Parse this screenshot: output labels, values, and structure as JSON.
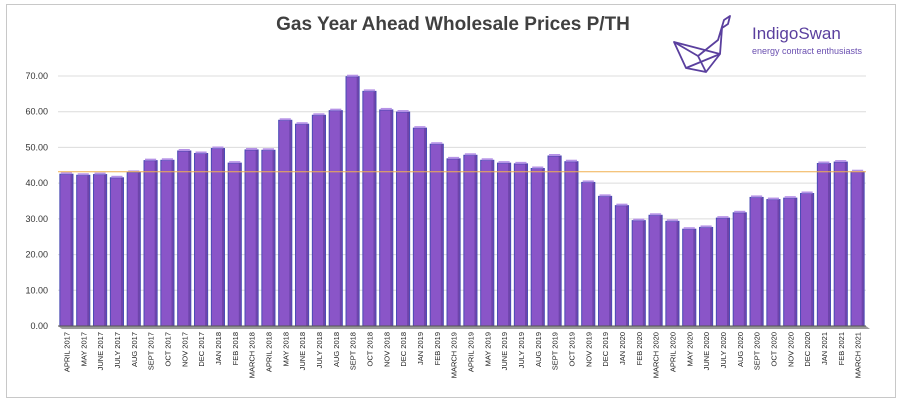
{
  "chart_data": {
    "type": "bar",
    "title": "Gas Year Ahead Wholesale Prices P/TH",
    "xlabel": "",
    "ylabel": "",
    "ylim": [
      0,
      70
    ],
    "yticks": [
      "0.00",
      "10.00",
      "20.00",
      "30.00",
      "40.00",
      "50.00",
      "60.00",
      "70.00"
    ],
    "reference_line": 43.2,
    "categories": [
      "APRIL 2017",
      "MAY 2017",
      "JUNE 2017",
      "JULY 2017",
      "AUG 2017",
      "SEPT 2017",
      "OCT 2017",
      "NOV 2017",
      "DEC 2017",
      "JAN 2018",
      "FEB 2018",
      "MARCH 2018",
      "APRIL 2018",
      "MAY 2018",
      "JUNE 2018",
      "JULY 2018",
      "AUG 2018",
      "SEPT 2018",
      "OCT 2018",
      "NOV 2018",
      "DEC 2018",
      "JAN 2019",
      "FEB 2019",
      "MARCH 2019",
      "APRIL 2019",
      "MAY 2019",
      "JUNE 2019",
      "JULY 2019",
      "AUG 2019",
      "SEPT 2019",
      "OCT 2019",
      "NOV 2019",
      "DEC 2019",
      "JAN 2020",
      "FEB 2020",
      "MARCH 2020",
      "APRIL 2020",
      "MAY 2020",
      "JUNE 2020",
      "JULY 2020",
      "AUG 2020",
      "SEPT 2020",
      "OCT 2020",
      "NOV 2020",
      "DEC 2020",
      "JAN 2021",
      "FEB 2021",
      "MARCH 2021"
    ],
    "values": [
      42.5,
      42.2,
      42.4,
      41.5,
      43.0,
      46.3,
      46.4,
      49.0,
      48.3,
      49.7,
      45.6,
      49.3,
      49.2,
      57.6,
      56.5,
      59.0,
      60.3,
      69.8,
      65.7,
      60.5,
      59.9,
      55.4,
      50.9,
      46.8,
      47.8,
      46.4,
      45.6,
      45.4,
      44.1,
      47.6,
      46.0,
      40.2,
      36.3,
      33.7,
      29.5,
      31.0,
      29.3,
      27.1,
      27.6,
      30.2,
      31.7,
      36.0,
      35.4,
      35.8,
      37.1,
      45.5,
      45.9,
      43.2
    ],
    "colors": {
      "bar": "#8a55c8",
      "bar_edge": "#4a4ab4",
      "bar_top": "#b592e6",
      "reference_line": "#f0b050",
      "grid": "#dcdcdc",
      "axis": "#555555"
    }
  },
  "logo": {
    "name": "IndigoSwan",
    "tagline": "energy contract enthusiasts",
    "icon": "swan-origami-icon"
  }
}
